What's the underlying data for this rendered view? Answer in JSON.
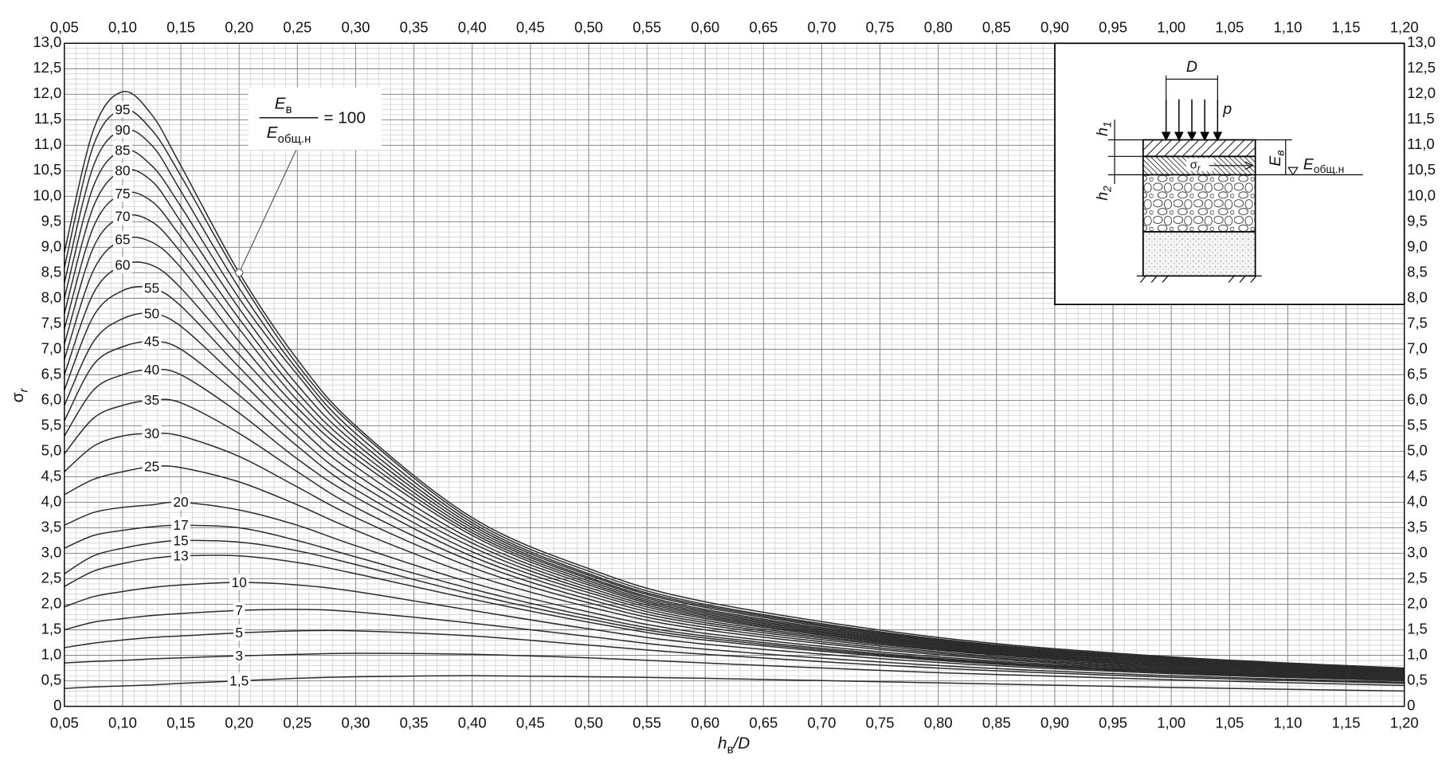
{
  "chart_data": {
    "type": "line",
    "x_label": {
      "symbol": "h",
      "subscript": "в",
      "suffix": "/D"
    },
    "y_label": {
      "symbol": "σ",
      "subscript": "r"
    },
    "annotation": {
      "numerator": {
        "symbol": "E",
        "subscript": "в"
      },
      "denominator": {
        "symbol": "E",
        "subscript": "общ.н"
      },
      "relation": "="
    },
    "grid": true,
    "x": [
      0.05,
      0.075,
      0.1,
      0.125,
      0.15,
      0.2,
      0.25,
      0.3,
      0.4,
      0.5,
      0.6,
      0.8,
      1.0,
      1.2
    ],
    "xlim": [
      0.05,
      1.2
    ],
    "ylim": [
      0,
      13
    ],
    "xticks": [
      {
        "value": 0.05,
        "label": "0,05"
      },
      {
        "value": 0.1,
        "label": "0,10"
      },
      {
        "value": 0.15,
        "label": "0,15"
      },
      {
        "value": 0.2,
        "label": "0,20"
      },
      {
        "value": 0.25,
        "label": "0,25"
      },
      {
        "value": 0.3,
        "label": "0,30"
      },
      {
        "value": 0.35,
        "label": "0,35"
      },
      {
        "value": 0.4,
        "label": "0,40"
      },
      {
        "value": 0.45,
        "label": "0,45"
      },
      {
        "value": 0.5,
        "label": "0,50"
      },
      {
        "value": 0.55,
        "label": "0,55"
      },
      {
        "value": 0.6,
        "label": "0,60"
      },
      {
        "value": 0.65,
        "label": "0,65"
      },
      {
        "value": 0.7,
        "label": "0,70"
      },
      {
        "value": 0.75,
        "label": "0,75"
      },
      {
        "value": 0.8,
        "label": "0,80"
      },
      {
        "value": 0.85,
        "label": "0,85"
      },
      {
        "value": 0.9,
        "label": "0,90"
      },
      {
        "value": 0.95,
        "label": "0,95"
      },
      {
        "value": 1.0,
        "label": "1,00"
      },
      {
        "value": 1.05,
        "label": "1,05"
      },
      {
        "value": 1.1,
        "label": "1,10"
      },
      {
        "value": 1.15,
        "label": "1,15"
      },
      {
        "value": 1.2,
        "label": "1,20"
      }
    ],
    "yticks": [
      0,
      {
        "value": 0.5,
        "label": "0,5"
      },
      {
        "value": 1,
        "label": "1,0"
      },
      {
        "value": 1.5,
        "label": "1,5"
      },
      {
        "value": 2,
        "label": "2,0"
      },
      {
        "value": 2.5,
        "label": "2,5"
      },
      {
        "value": 3,
        "label": "3,0"
      },
      {
        "value": 3.5,
        "label": "3,5"
      },
      {
        "value": 4,
        "label": "4,0"
      },
      {
        "value": 4.5,
        "label": "4,5"
      },
      {
        "value": 5,
        "label": "5,0"
      },
      {
        "value": 5.5,
        "label": "5,5"
      },
      {
        "value": 6,
        "label": "6,0"
      },
      {
        "value": 6.5,
        "label": "6,5"
      },
      {
        "value": 7,
        "label": "7,0"
      },
      {
        "value": 7.5,
        "label": "7,5"
      },
      {
        "value": 8,
        "label": "8,0"
      },
      {
        "value": 8.5,
        "label": "8,5"
      },
      {
        "value": 9,
        "label": "9,0"
      },
      {
        "value": 9.5,
        "label": "9,5"
      },
      {
        "value": 10,
        "label": "10,0"
      },
      {
        "value": 10.5,
        "label": "10,5"
      },
      {
        "value": 11,
        "label": "11,0"
      },
      {
        "value": 11.5,
        "label": "11,5"
      },
      {
        "value": 12,
        "label": "12,0"
      },
      {
        "value": 12.5,
        "label": "12,5"
      },
      {
        "value": 13,
        "label": "13,0"
      }
    ],
    "series": [
      {
        "name": "100",
        "color": "#2b2b2b",
        "values": [
          8.9,
          11.3,
          12.05,
          11.6,
          10.6,
          8.5,
          6.8,
          5.5,
          3.7,
          2.7,
          2.05,
          1.35,
          0.97,
          0.75
        ]
      },
      {
        "name": "95",
        "color": "#2b2b2b",
        "values": [
          8.6,
          11.0,
          11.7,
          11.3,
          10.4,
          8.4,
          6.7,
          5.45,
          3.65,
          2.65,
          2.0,
          1.32,
          0.95,
          0.73
        ]
      },
      {
        "name": "90",
        "color": "#2b2b2b",
        "values": [
          8.3,
          10.6,
          11.3,
          11.0,
          10.1,
          8.2,
          6.6,
          5.35,
          3.6,
          2.6,
          1.97,
          1.3,
          0.93,
          0.72
        ]
      },
      {
        "name": "85",
        "color": "#2b2b2b",
        "values": [
          8.0,
          10.2,
          10.9,
          10.6,
          9.8,
          8.0,
          6.5,
          5.25,
          3.55,
          2.57,
          1.94,
          1.28,
          0.92,
          0.71
        ]
      },
      {
        "name": "80",
        "color": "#2b2b2b",
        "values": [
          7.7,
          9.8,
          10.5,
          10.3,
          9.5,
          7.8,
          6.3,
          5.15,
          3.5,
          2.53,
          1.9,
          1.26,
          0.9,
          0.7
        ]
      },
      {
        "name": "75",
        "color": "#2b2b2b",
        "values": [
          7.4,
          9.4,
          10.05,
          9.9,
          9.2,
          7.6,
          6.15,
          5.05,
          3.45,
          2.5,
          1.87,
          1.24,
          0.89,
          0.69
        ]
      },
      {
        "name": "70",
        "color": "#2b2b2b",
        "values": [
          7.1,
          9.0,
          9.6,
          9.5,
          8.9,
          7.4,
          6.0,
          4.95,
          3.4,
          2.46,
          1.84,
          1.22,
          0.88,
          0.68
        ]
      },
      {
        "name": "65",
        "color": "#2b2b2b",
        "values": [
          6.8,
          8.55,
          9.15,
          9.1,
          8.6,
          7.15,
          5.85,
          4.85,
          3.35,
          2.42,
          1.81,
          1.2,
          0.86,
          0.67
        ]
      },
      {
        "name": "60",
        "color": "#2b2b2b",
        "values": [
          6.5,
          8.1,
          8.65,
          8.65,
          8.2,
          6.9,
          5.7,
          4.7,
          3.27,
          2.38,
          1.78,
          1.18,
          0.85,
          0.66
        ]
      },
      {
        "name": "55",
        "color": "#2b2b2b",
        "values": [
          6.2,
          7.65,
          8.15,
          8.2,
          7.85,
          6.65,
          5.5,
          4.55,
          3.2,
          2.33,
          1.75,
          1.16,
          0.84,
          0.65
        ]
      },
      {
        "name": "50",
        "color": "#2b2b2b",
        "values": [
          5.9,
          7.15,
          7.6,
          7.7,
          7.45,
          6.4,
          5.3,
          4.4,
          3.12,
          2.28,
          1.72,
          1.14,
          0.82,
          0.64
        ]
      },
      {
        "name": "45",
        "color": "#2b2b2b",
        "values": [
          5.6,
          6.7,
          7.05,
          7.15,
          7.0,
          6.1,
          5.1,
          4.25,
          3.03,
          2.23,
          1.68,
          1.12,
          0.81,
          0.63
        ]
      },
      {
        "name": "40",
        "color": "#2b2b2b",
        "values": [
          5.3,
          6.2,
          6.5,
          6.6,
          6.5,
          5.75,
          4.85,
          4.1,
          2.94,
          2.17,
          1.64,
          1.1,
          0.79,
          0.62
        ]
      },
      {
        "name": "35",
        "color": "#2b2b2b",
        "values": [
          4.95,
          5.65,
          5.9,
          6.0,
          5.95,
          5.35,
          4.6,
          3.9,
          2.84,
          2.1,
          1.6,
          1.07,
          0.77,
          0.6
        ]
      },
      {
        "name": "30",
        "color": "#2b2b2b",
        "values": [
          4.6,
          5.1,
          5.3,
          5.35,
          5.3,
          4.9,
          4.3,
          3.7,
          2.72,
          2.03,
          1.55,
          1.04,
          0.75,
          0.59
        ]
      },
      {
        "name": "25",
        "color": "#2b2b2b",
        "values": [
          4.15,
          4.45,
          4.6,
          4.7,
          4.68,
          4.4,
          3.95,
          3.45,
          2.58,
          1.95,
          1.5,
          1.01,
          0.73,
          0.57
        ]
      },
      {
        "name": "20",
        "color": "#2b2b2b",
        "values": [
          3.55,
          3.8,
          3.9,
          3.95,
          4.0,
          3.85,
          3.55,
          3.15,
          2.42,
          1.85,
          1.43,
          0.97,
          0.71,
          0.55
        ]
      },
      {
        "name": "17",
        "color": "#2b2b2b",
        "values": [
          3.1,
          3.35,
          3.45,
          3.52,
          3.55,
          3.5,
          3.25,
          2.93,
          2.3,
          1.77,
          1.38,
          0.94,
          0.69,
          0.54
        ]
      },
      {
        "name": "15",
        "color": "#2b2b2b",
        "values": [
          2.6,
          2.95,
          3.1,
          3.2,
          3.25,
          3.22,
          3.05,
          2.78,
          2.2,
          1.71,
          1.34,
          0.92,
          0.68,
          0.53
        ]
      },
      {
        "name": "13",
        "color": "#2b2b2b",
        "values": [
          2.35,
          2.65,
          2.8,
          2.9,
          2.95,
          2.95,
          2.82,
          2.6,
          2.1,
          1.65,
          1.3,
          0.9,
          0.66,
          0.52
        ]
      },
      {
        "name": "10",
        "color": "#2b2b2b",
        "values": [
          1.95,
          2.15,
          2.25,
          2.33,
          2.38,
          2.43,
          2.38,
          2.25,
          1.88,
          1.52,
          1.22,
          0.86,
          0.64,
          0.5
        ]
      },
      {
        "name": "7",
        "color": "#2b2b2b",
        "values": [
          1.5,
          1.65,
          1.72,
          1.78,
          1.82,
          1.88,
          1.9,
          1.85,
          1.63,
          1.37,
          1.12,
          0.8,
          0.6,
          0.47
        ]
      },
      {
        "name": "5",
        "color": "#2b2b2b",
        "values": [
          1.15,
          1.24,
          1.3,
          1.35,
          1.38,
          1.44,
          1.48,
          1.48,
          1.38,
          1.2,
          1.02,
          0.75,
          0.57,
          0.45
        ]
      },
      {
        "name": "3",
        "color": "#2b2b2b",
        "values": [
          0.85,
          0.88,
          0.9,
          0.93,
          0.95,
          0.99,
          1.02,
          1.04,
          1.02,
          0.95,
          0.85,
          0.66,
          0.52,
          0.41
        ]
      },
      {
        "name": "1,5",
        "color": "#2b2b2b",
        "values": [
          0.35,
          0.38,
          0.4,
          0.42,
          0.45,
          0.5,
          0.55,
          0.58,
          0.6,
          0.58,
          0.55,
          0.46,
          0.37,
          0.3
        ]
      }
    ]
  },
  "inset": {
    "diameter": "D",
    "load": "p",
    "layer1_thickness": {
      "symbol": "h",
      "subscript": "1"
    },
    "layer2_thickness": {
      "symbol": "h",
      "subscript": "2"
    },
    "layer_modulus": {
      "symbol": "E",
      "subscript": "в"
    },
    "total_modulus": {
      "symbol": "E",
      "subscript": "общ.н"
    },
    "stress": {
      "symbol": "σ",
      "subscript": "r"
    }
  }
}
